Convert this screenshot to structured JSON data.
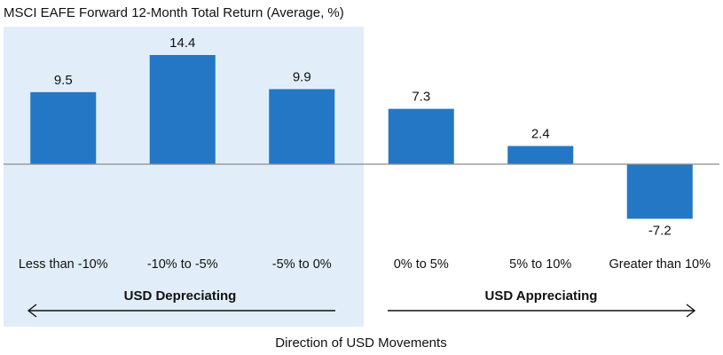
{
  "chart_data": {
    "type": "bar",
    "title": "MSCI EAFE Forward 12-Month Total Return (Average, %)",
    "categories": [
      "Less than -10%",
      "-10% to -5%",
      "-5% to 0%",
      "0% to 5%",
      "5% to 10%",
      "Greater than 10%"
    ],
    "values": [
      9.5,
      14.4,
      9.9,
      7.3,
      2.4,
      -7.2
    ],
    "value_labels": [
      "9.5",
      "14.4",
      "9.9",
      "7.3",
      "2.4",
      "-7.2"
    ],
    "ylim": [
      -7.2,
      14.4
    ],
    "groups": [
      {
        "label": "USD Depreciating",
        "categories": [
          "Less than -10%",
          "-10% to -5%",
          "-5% to 0%"
        ],
        "arrow": "left",
        "highlighted": true
      },
      {
        "label": "USD Appreciating",
        "categories": [
          "0% to 5%",
          "5% to 10%",
          "Greater than 10%"
        ],
        "arrow": "right",
        "highlighted": false
      }
    ],
    "xlabel": "Direction of USD Movements",
    "ylabel": "",
    "grid": false,
    "legend": "none",
    "colors": {
      "bar": "#2377C5",
      "highlight_panel": "#E1EEF9",
      "zero_line": "#8C8C8C",
      "arrow": "#111111"
    }
  }
}
